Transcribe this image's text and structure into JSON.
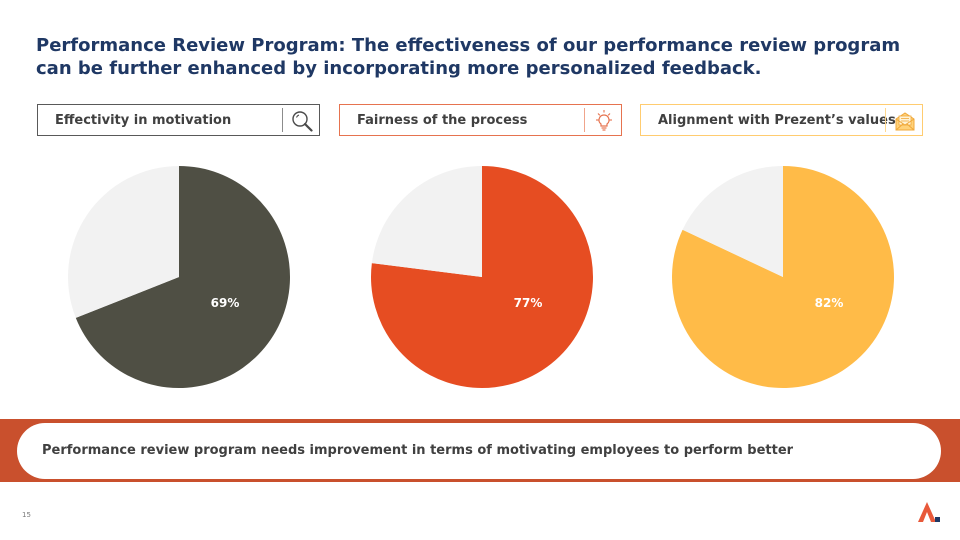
{
  "slide": {
    "title_line1": "Performance Review Program: The effectiveness of our performance review program",
    "title_line2": "can be further enhanced by incorporating more personalized feedback.",
    "callout": "Performance review program needs improvement in terms of motivating employees to perform better",
    "page_number": "15"
  },
  "colors": {
    "title": "#1f3864",
    "remainder_slice": "#f2f2f2",
    "banner": "#c9502d"
  },
  "chart_data": [
    {
      "type": "pie",
      "title": "Effectivity in motivation",
      "icon": "magnifier-icon",
      "color": "#4f4f44",
      "values": [
        69,
        31
      ],
      "data_label": "69%"
    },
    {
      "type": "pie",
      "title": "Fairness of the process",
      "icon": "lightbulb-icon",
      "color": "#e64d22",
      "values": [
        77,
        23
      ],
      "data_label": "77%"
    },
    {
      "type": "pie",
      "title": "Alignment with Prezent’s values",
      "icon": "envelope-icon",
      "color": "#ffbb48",
      "values": [
        82,
        18
      ],
      "data_label": "82%"
    }
  ]
}
